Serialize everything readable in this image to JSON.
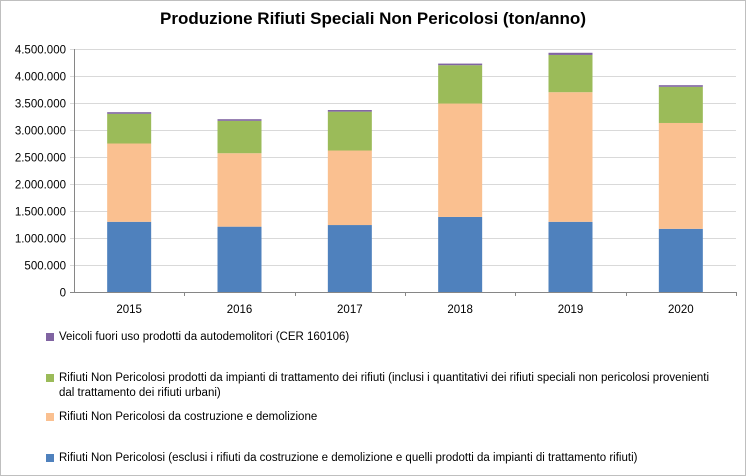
{
  "chart_data": {
    "type": "bar",
    "stacked": true,
    "title": "Produzione Rifiuti Speciali Non Pericolosi (ton/anno)",
    "xlabel": "",
    "ylabel": "",
    "categories": [
      "2015",
      "2016",
      "2017",
      "2018",
      "2019",
      "2020"
    ],
    "ylim": [
      0,
      4500000
    ],
    "yticks": [
      "0",
      "500.000",
      "1.000.000",
      "1.500.000",
      "2.000.000",
      "2.500.000",
      "3.000.000",
      "3.500.000",
      "4.000.000",
      "4.500.000"
    ],
    "grid": true,
    "legend_position": "bottom",
    "series": [
      {
        "name": "Rifiuti Non Pericolosi (esclusi i rifiuti da costruzione e demolizione e quelli prodotti da impianti di trattamento rifiuti)",
        "color": "#4f81bd",
        "values": [
          1300000,
          1210000,
          1240000,
          1390000,
          1300000,
          1170000
        ]
      },
      {
        "name": "Rifiuti Non Pericolosi da costruzione e demolizione",
        "color": "#fac090",
        "values": [
          1450000,
          1360000,
          1380000,
          2100000,
          2400000,
          1960000
        ]
      },
      {
        "name": "Rifiuti Non Pericolosi prodotti da impianti di trattamento dei rifiuti (inclusi i quantitativi dei rifiuti speciali non pericolosi provenienti dal trattamento dei rifiuti urbani)",
        "color": "#9bbb59",
        "values": [
          550000,
          600000,
          720000,
          710000,
          690000,
          670000
        ]
      },
      {
        "name": "Veicoli fuori uso prodotti da autodemolitori (CER 160106)",
        "color": "#8064a2",
        "values": [
          30000,
          30000,
          30000,
          30000,
          40000,
          30000
        ]
      }
    ]
  }
}
